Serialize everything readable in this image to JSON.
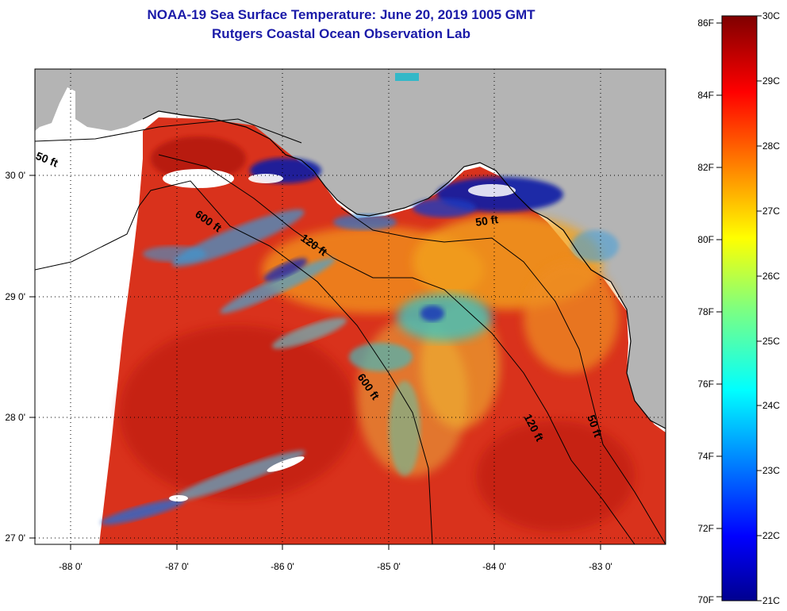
{
  "title": "NOAA-19 Sea Surface Temperature:  June 20, 2019 1005 GMT",
  "subtitle": "Rutgers Coastal Ocean Observation Lab",
  "map": {
    "longitude_ticks": [
      "-88 0'",
      "-87 0'",
      "-86 0'",
      "-85 0'",
      "-84 0'",
      "-83 0'"
    ],
    "latitude_ticks": [
      "30 0'",
      "29 0'",
      "28 0'",
      "27 0'"
    ],
    "extent": {
      "lon": [
        -88.35,
        -82.45
      ],
      "lat": [
        26.95,
        30.85
      ]
    },
    "isobath_labels": [
      "50 ft",
      "600 ft",
      "120 ft",
      "50 ft",
      "600 ft",
      "120 ft",
      "50 ft"
    ],
    "colors": {
      "land": "#b4b4b4",
      "warm": "#d42a1a",
      "cold": "#0a1a9a",
      "grid": "#000000"
    }
  },
  "colorbar": {
    "fahrenheit": [
      "86F",
      "84F",
      "82F",
      "80F",
      "78F",
      "76F",
      "74F",
      "72F",
      "70F"
    ],
    "celsius": [
      "30C",
      "29C",
      "28C",
      "27C",
      "26C",
      "25C",
      "24C",
      "23C",
      "22C",
      "21C"
    ],
    "range_c": [
      21,
      30
    ]
  }
}
